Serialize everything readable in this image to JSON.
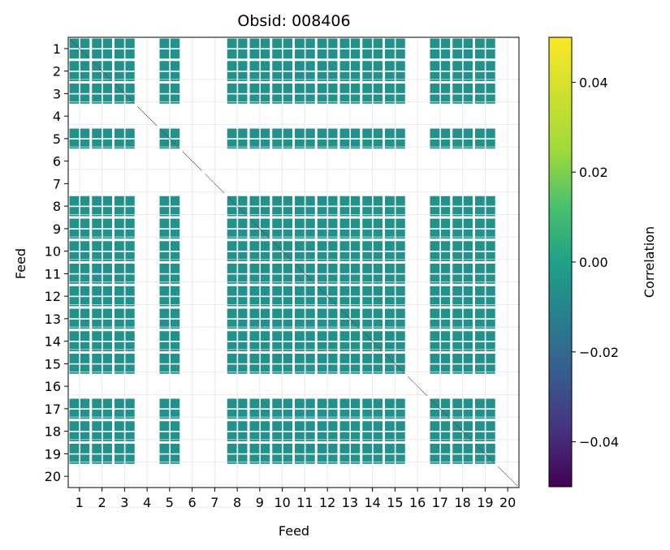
{
  "chart_data": {
    "type": "heatmap",
    "title": "Obsid: 008406",
    "xlabel": "Feed",
    "ylabel": "Feed",
    "x_ticks": [
      "1",
      "2",
      "3",
      "4",
      "5",
      "6",
      "7",
      "8",
      "9",
      "10",
      "11",
      "12",
      "13",
      "14",
      "15",
      "16",
      "17",
      "18",
      "19",
      "20"
    ],
    "y_ticks": [
      "1",
      "2",
      "3",
      "4",
      "5",
      "6",
      "7",
      "8",
      "9",
      "10",
      "11",
      "12",
      "13",
      "14",
      "15",
      "16",
      "17",
      "18",
      "19",
      "20"
    ],
    "grid": true,
    "colorbar": {
      "label": "Correlation",
      "range": [
        -0.05,
        0.05
      ],
      "ticks": [
        "0.04",
        "0.02",
        "0.00",
        "−0.02",
        "−0.04"
      ],
      "colormap": "viridis"
    },
    "cell_color": "#21918c",
    "cell_value": 0.0,
    "active_feeds": [
      1,
      2,
      3,
      5,
      8,
      9,
      10,
      11,
      12,
      13,
      14,
      15,
      17,
      18,
      19
    ],
    "blank_feeds": [
      4,
      6,
      7,
      16,
      20
    ]
  }
}
